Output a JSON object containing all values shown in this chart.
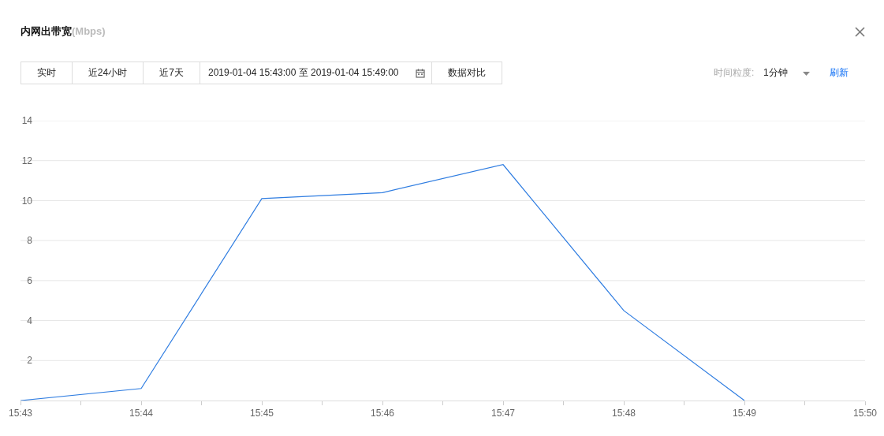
{
  "chart_data": {
    "type": "line",
    "title": "内网出带宽",
    "subtitle": "(Mbps)",
    "x": [
      "2019-01-04T15:43",
      "2019-01-04T15:44",
      "2019-01-04T15:45",
      "2019-01-04T15:46",
      "2019-01-04T15:47",
      "2019-01-04T15:48",
      "2019-01-04T15:49"
    ],
    "series": [
      {
        "color": "#2f7de1",
        "values": [
          0,
          0.6,
          10.1,
          10.4,
          11.8,
          4.5,
          0
        ]
      }
    ],
    "xlim": [
      "2019-01-04T15:43",
      "2019-01-04T15:50"
    ],
    "xticks": [
      {
        "value": "2019-01-04T15:43",
        "label": "15:43"
      },
      {
        "value": "2019-01-04T15:43:30",
        "label": null
      },
      {
        "value": "2019-01-04T15:44",
        "label": "15:44"
      },
      {
        "value": "2019-01-04T15:44:30",
        "label": null
      },
      {
        "value": "2019-01-04T15:45",
        "label": "15:45"
      },
      {
        "value": "2019-01-04T15:45:30",
        "label": null
      },
      {
        "value": "2019-01-04T15:46",
        "label": "15:46"
      },
      {
        "value": "2019-01-04T15:46:30",
        "label": null
      },
      {
        "value": "2019-01-04T15:47",
        "label": "15:47"
      },
      {
        "value": "2019-01-04T15:47:30",
        "label": null
      },
      {
        "value": "2019-01-04T15:48",
        "label": "15:48"
      },
      {
        "value": "2019-01-04T15:48:30",
        "label": null
      },
      {
        "value": "2019-01-04T15:49",
        "label": "15:49"
      },
      {
        "value": "2019-01-04T15:49:30",
        "label": null
      },
      {
        "value": "2019-01-04T15:50",
        "label": "15:50"
      }
    ],
    "ylim": [
      0,
      14
    ],
    "yticks": [
      2,
      4,
      6,
      8,
      10,
      12,
      14
    ],
    "grid": "y",
    "annotations": [
      "实时",
      "近24小时",
      "近7天",
      "2019-01-04 15:43:00 至 2019-01-04 15:49:00",
      "数据对比",
      "时间粒度:",
      "1分钟",
      "刷新"
    ]
  }
}
